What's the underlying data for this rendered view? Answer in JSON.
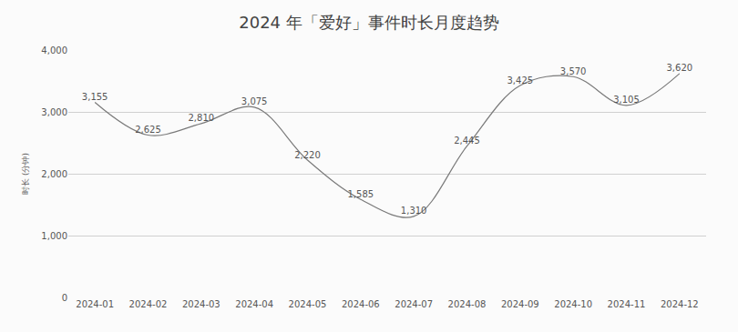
{
  "chart_data": {
    "type": "line",
    "title": "2024 年「爱好」事件时长月度趋势",
    "ylabel": "时长 (分钟)",
    "categories": [
      "2024-01",
      "2024-02",
      "2024-03",
      "2024-04",
      "2024-05",
      "2024-06",
      "2024-07",
      "2024-08",
      "2024-09",
      "2024-10",
      "2024-11",
      "2024-12"
    ],
    "values": [
      3155,
      2625,
      2810,
      3075,
      2220,
      1585,
      1310,
      2445,
      3425,
      3570,
      3105,
      3620
    ],
    "value_labels": [
      "3,155",
      "2,625",
      "2,810",
      "3,075",
      "2,220",
      "1,585",
      "1,310",
      "2,445",
      "3,425",
      "3,570",
      "3,105",
      "3,620"
    ],
    "color": "#7a7a7a",
    "line_style": "smooth",
    "data_labels": true,
    "grid": true,
    "ylim": [
      0,
      4000
    ],
    "yticks": [
      0,
      {
        "value": 1000,
        "label": "1,000"
      },
      {
        "value": 2000,
        "label": "2,000"
      },
      {
        "value": 3000,
        "label": "3,000"
      },
      {
        "value": 4000,
        "label": "4,000"
      }
    ]
  }
}
